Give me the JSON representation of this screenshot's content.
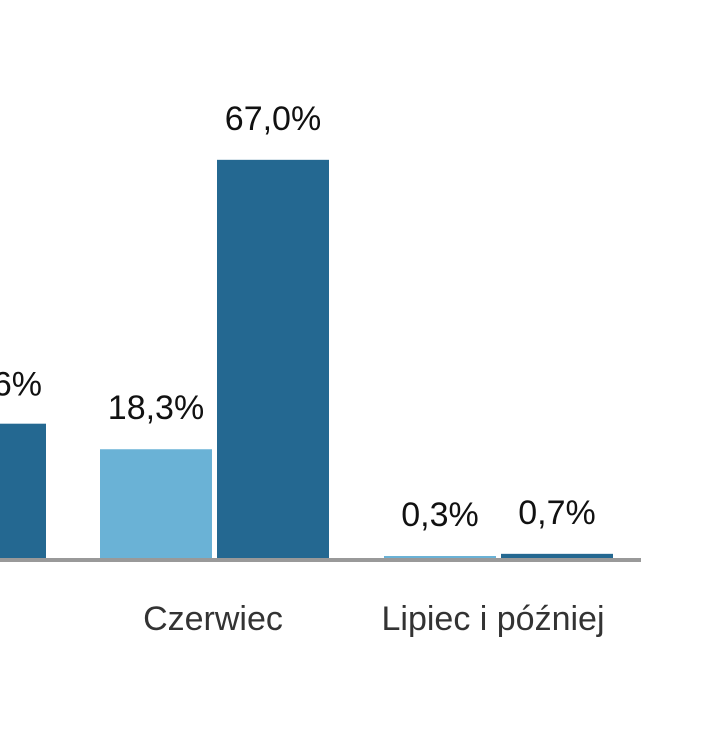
{
  "chart_data": {
    "type": "bar",
    "categories": [
      "",
      "Czerwiec",
      "Lipiec i później"
    ],
    "category_labels_text": [
      "",
      "Czerwiec",
      "Lipiec i później"
    ],
    "series": [
      {
        "values": [
          null,
          18.3,
          0.3
        ],
        "color": "#6ab2d6"
      },
      {
        "values": [
          null,
          67.0,
          0.7
        ],
        "color": "#246891"
      }
    ],
    "partial_bar": {
      "value": 22.6,
      "label": "6%",
      "color": "#246891"
    },
    "value_labels": [
      [
        "",
        "18,3%",
        "0,3%"
      ],
      [
        "",
        "67,0%",
        "0,7%"
      ]
    ],
    "ylim": [
      0,
      70
    ],
    "grid": false,
    "legend": "none",
    "axis_color": "#999999"
  }
}
